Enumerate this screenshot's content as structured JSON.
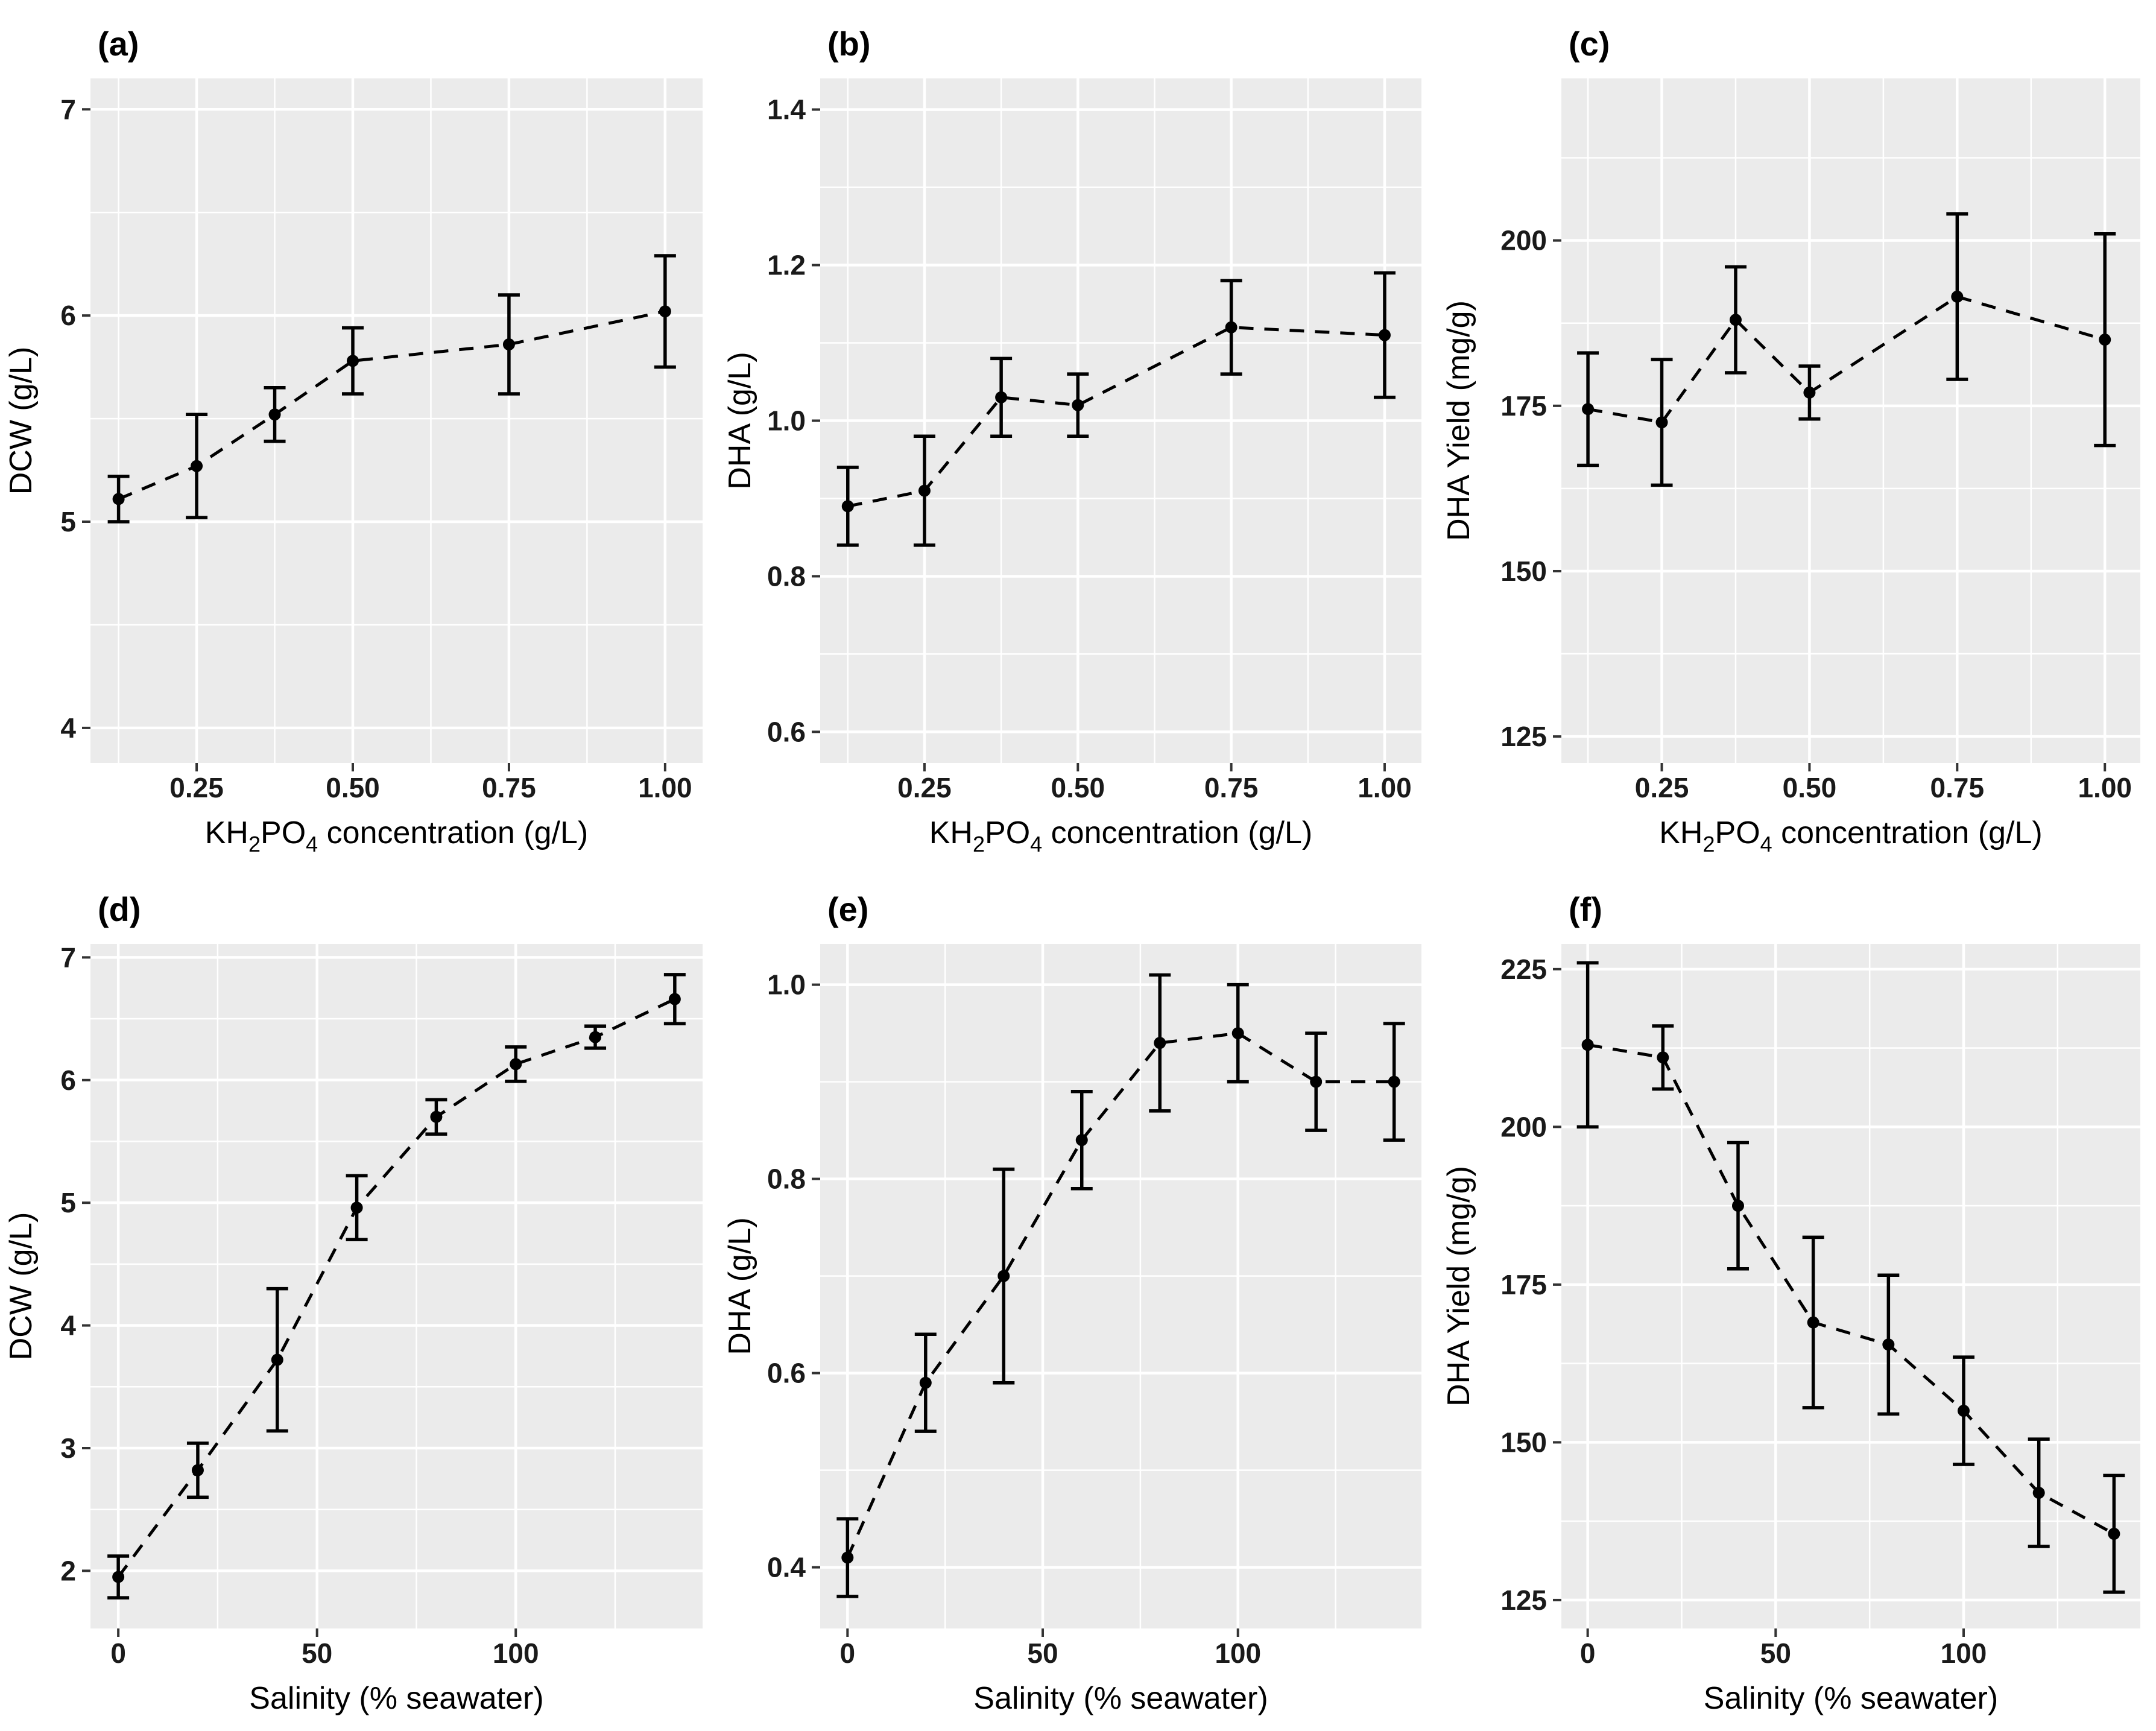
{
  "figure": {
    "background": "#ffffff",
    "description": "Six-panel figure of growth and DHA production responses"
  },
  "styles": {
    "panel_background": "#ebebeb",
    "grid_color": "#ffffff",
    "data_color": "#000000",
    "text_color": "#1a1a1a",
    "tick_mark_color": "#333333"
  },
  "chart_data": [
    {
      "id": "a",
      "tag": "(a)",
      "type": "line",
      "xlabel": "KH{2}PO{4} concentration (g/L)",
      "ylabel": "DCW (g/L)",
      "x": [
        0.125,
        0.25,
        0.375,
        0.5,
        0.75,
        1.0
      ],
      "y": [
        5.11,
        5.27,
        5.52,
        5.78,
        5.86,
        6.02
      ],
      "yerr": [
        0.11,
        0.25,
        0.13,
        0.16,
        0.24,
        0.27
      ],
      "xlim": [
        0.08,
        1.06
      ],
      "ylim": [
        3.83,
        7.15
      ],
      "xticks": {
        "values": [
          0.25,
          0.5,
          0.75,
          1.0
        ],
        "labels": [
          "0.25",
          "0.50",
          "0.75",
          "1.00"
        ]
      },
      "xminor": [
        0.125,
        0.375,
        0.625,
        0.875
      ],
      "yticks": {
        "values": [
          4,
          5,
          6,
          7
        ],
        "labels": [
          "4",
          "5",
          "6",
          "7"
        ]
      },
      "yminor": [
        4.5,
        5.5,
        6.5
      ],
      "line_style": "dashed",
      "marker": "point",
      "error_bars": true,
      "grid": true,
      "legend": "none"
    },
    {
      "id": "b",
      "tag": "(b)",
      "type": "line",
      "xlabel": "KH{2}PO{4} concentration (g/L)",
      "ylabel": "DHA (g/L)",
      "x": [
        0.125,
        0.25,
        0.375,
        0.5,
        0.75,
        1.0
      ],
      "y": [
        0.89,
        0.91,
        1.03,
        1.02,
        1.12,
        1.11
      ],
      "yerr": [
        0.05,
        0.07,
        0.05,
        0.04,
        0.06,
        0.08
      ],
      "xlim": [
        0.08,
        1.06
      ],
      "ylim": [
        0.56,
        1.44
      ],
      "xticks": {
        "values": [
          0.25,
          0.5,
          0.75,
          1.0
        ],
        "labels": [
          "0.25",
          "0.50",
          "0.75",
          "1.00"
        ]
      },
      "xminor": [
        0.125,
        0.375,
        0.625,
        0.875
      ],
      "yticks": {
        "values": [
          0.6,
          0.8,
          1.0,
          1.2,
          1.4
        ],
        "labels": [
          "0.6",
          "0.8",
          "1.0",
          "1.2",
          "1.4"
        ]
      },
      "yminor": [
        0.7,
        0.9,
        1.1,
        1.3
      ],
      "line_style": "dashed",
      "marker": "point",
      "error_bars": true,
      "grid": true,
      "legend": "none"
    },
    {
      "id": "c",
      "tag": "(c)",
      "type": "line",
      "xlabel": "KH{2}PO{4} concentration (g/L)",
      "ylabel": "DHA Yield (mg/g)",
      "x": [
        0.125,
        0.25,
        0.375,
        0.5,
        0.75,
        1.0
      ],
      "y": [
        174.5,
        172.5,
        188,
        177,
        191.5,
        185
      ],
      "yerr": [
        8.5,
        9.5,
        8,
        4,
        12.5,
        16
      ],
      "xlim": [
        0.08,
        1.06
      ],
      "ylim": [
        121,
        224.5
      ],
      "xticks": {
        "values": [
          0.25,
          0.5,
          0.75,
          1.0
        ],
        "labels": [
          "0.25",
          "0.50",
          "0.75",
          "1.00"
        ]
      },
      "xminor": [
        0.125,
        0.375,
        0.625,
        0.875
      ],
      "yticks": {
        "values": [
          125,
          150,
          175,
          200
        ],
        "labels": [
          "125",
          "150",
          "175",
          "200"
        ]
      },
      "yminor": [
        137.5,
        162.5,
        187.5,
        212.5
      ],
      "line_style": "dashed",
      "marker": "point",
      "error_bars": true,
      "grid": true,
      "legend": "none"
    },
    {
      "id": "d",
      "tag": "(d)",
      "type": "line",
      "xlabel": "Salinity (% seawater)",
      "ylabel": "DCW (g/L)",
      "x": [
        0,
        20,
        40,
        60,
        80,
        100,
        120,
        140
      ],
      "y": [
        1.95,
        2.82,
        3.72,
        4.96,
        5.7,
        6.13,
        6.35,
        6.66
      ],
      "yerr": [
        0.17,
        0.22,
        0.58,
        0.26,
        0.14,
        0.14,
        0.09,
        0.2
      ],
      "xlim": [
        -7,
        147
      ],
      "ylim": [
        1.53,
        7.11
      ],
      "xticks": {
        "values": [
          0,
          50,
          100
        ],
        "labels": [
          "0",
          "50",
          "100"
        ]
      },
      "xminor": [
        25,
        75,
        125
      ],
      "yticks": {
        "values": [
          2,
          3,
          4,
          5,
          6,
          7
        ],
        "labels": [
          "2",
          "3",
          "4",
          "5",
          "6",
          "7"
        ]
      },
      "yminor": [
        2.5,
        3.5,
        4.5,
        5.5,
        6.5
      ],
      "line_style": "dashed",
      "marker": "point",
      "error_bars": true,
      "grid": true,
      "legend": "none"
    },
    {
      "id": "e",
      "tag": "(e)",
      "type": "line",
      "xlabel": "Salinity (% seawater)",
      "ylabel": "DHA (g/L)",
      "x": [
        0,
        20,
        40,
        60,
        80,
        100,
        120,
        140
      ],
      "y": [
        0.41,
        0.59,
        0.7,
        0.84,
        0.94,
        0.95,
        0.9,
        0.9
      ],
      "yerr": [
        0.04,
        0.05,
        0.11,
        0.05,
        0.07,
        0.05,
        0.05,
        0.06
      ],
      "xlim": [
        -7,
        147
      ],
      "ylim": [
        0.337,
        1.042
      ],
      "xticks": {
        "values": [
          0,
          50,
          100
        ],
        "labels": [
          "0",
          "50",
          "100"
        ]
      },
      "xminor": [
        25,
        75,
        125
      ],
      "yticks": {
        "values": [
          0.4,
          0.6,
          0.8,
          1.0
        ],
        "labels": [
          "0.4",
          "0.6",
          "0.8",
          "1.0"
        ]
      },
      "yminor": [
        0.5,
        0.7,
        0.9
      ],
      "line_style": "dashed",
      "marker": "point",
      "error_bars": true,
      "grid": true,
      "legend": "none"
    },
    {
      "id": "f",
      "tag": "(f)",
      "type": "line",
      "xlabel": "Salinity (% seawater)",
      "ylabel": "DHA Yield (mg/g)",
      "x": [
        0,
        20,
        40,
        60,
        80,
        100,
        120,
        140
      ],
      "y": [
        213,
        211,
        187.5,
        169,
        165.5,
        155,
        142,
        135.5
      ],
      "yerr": [
        13,
        5,
        10,
        13.5,
        11,
        8.5,
        8.5,
        9.25
      ],
      "xlim": [
        -7,
        147
      ],
      "ylim": [
        120.5,
        229
      ],
      "xticks": {
        "values": [
          0,
          50,
          100
        ],
        "labels": [
          "0",
          "50",
          "100"
        ]
      },
      "xminor": [
        25,
        75,
        125
      ],
      "yticks": {
        "values": [
          125,
          150,
          175,
          200,
          225
        ],
        "labels": [
          "125",
          "150",
          "175",
          "200",
          "225"
        ]
      },
      "yminor": [
        137.5,
        162.5,
        187.5,
        212.5
      ],
      "line_style": "dashed",
      "marker": "point",
      "error_bars": true,
      "grid": true,
      "legend": "none"
    }
  ]
}
